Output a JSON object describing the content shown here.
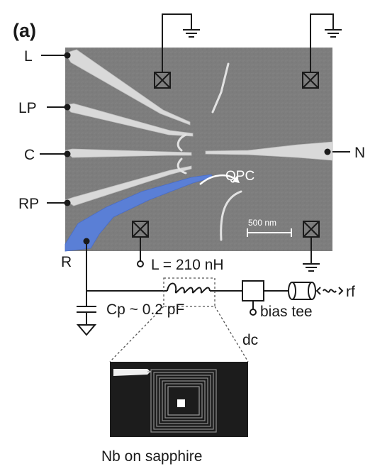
{
  "panel_label": "(a)",
  "gate_labels": {
    "left": "L",
    "left_plunger": "LP",
    "center": "C",
    "right_plunger": "RP",
    "right": "R",
    "nanowire": "N"
  },
  "qpc_label": "QPC",
  "scale_bar_label": "500 nm",
  "inductor_label": "L = 210 nH",
  "capacitance_label": "Cp ~ 0.2 pF",
  "bias_tee_label": "bias tee",
  "dc_label": "dc",
  "rf_label": "rf",
  "substrate_caption": "Nb on sapphire",
  "colors": {
    "sem_background": "#7d7d7d",
    "gate_metal": "#d9d9d9",
    "highlight_gate": "#5a7fd6",
    "wire": "#1a1a1a",
    "inset_background": "#1c1c1c"
  }
}
